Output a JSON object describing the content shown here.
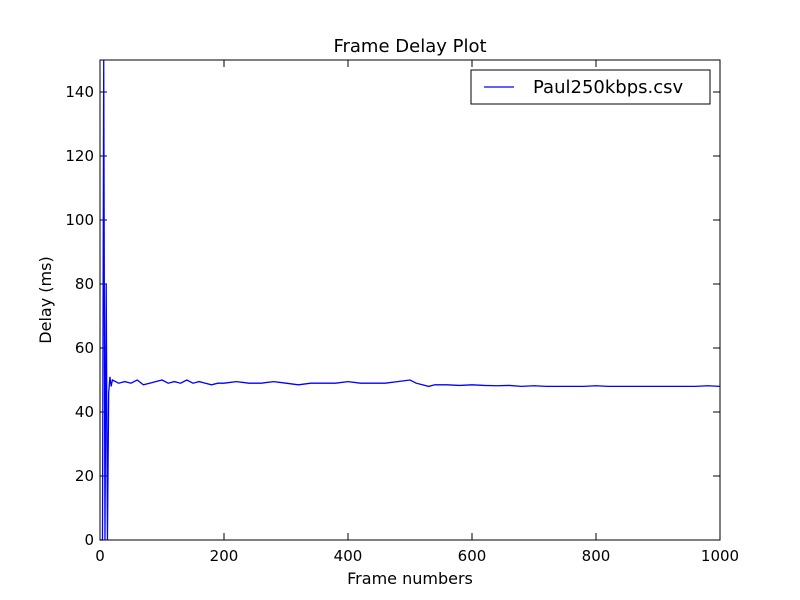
{
  "chart_data": {
    "type": "line",
    "title": "Frame Delay Plot",
    "xlabel": "Frame numbers",
    "ylabel": "Delay (ms)",
    "xlim": [
      0,
      1000
    ],
    "ylim": [
      0,
      150
    ],
    "xticks": [
      0,
      200,
      400,
      600,
      800,
      1000
    ],
    "yticks": [
      0,
      20,
      40,
      60,
      80,
      100,
      120,
      140
    ],
    "grid": false,
    "legend_position": "top-right",
    "colors": {
      "line": "#0000ff",
      "axes": "#000000",
      "background": "#ffffff"
    },
    "series": [
      {
        "name": "Paul250kbps.csv",
        "x": [
          0,
          2,
          4,
          6,
          8,
          10,
          12,
          14,
          16,
          18,
          20,
          30,
          40,
          50,
          60,
          70,
          80,
          90,
          100,
          110,
          120,
          130,
          140,
          150,
          160,
          170,
          180,
          190,
          200,
          220,
          240,
          260,
          280,
          300,
          320,
          340,
          360,
          380,
          400,
          420,
          440,
          460,
          480,
          500,
          510,
          520,
          530,
          540,
          560,
          580,
          600,
          620,
          640,
          660,
          680,
          700,
          720,
          740,
          760,
          780,
          800,
          820,
          840,
          860,
          880,
          900,
          920,
          940,
          960,
          980,
          1000
        ],
        "y": [
          0,
          0,
          0,
          150,
          0,
          80,
          0,
          46,
          51,
          48,
          50,
          49,
          49.5,
          49,
          50,
          48.5,
          49,
          49.5,
          50,
          49,
          49.5,
          49,
          50,
          49,
          49.5,
          49,
          48.5,
          49,
          49,
          49.5,
          49,
          49,
          49.5,
          49,
          48.5,
          49,
          49,
          49,
          49.5,
          49,
          49,
          49,
          49.5,
          50,
          49,
          48.5,
          48,
          48.5,
          48.5,
          48.3,
          48.5,
          48.3,
          48.2,
          48.3,
          48,
          48.2,
          48,
          48,
          48,
          48,
          48.2,
          48,
          48,
          48,
          48,
          48,
          48,
          48,
          48,
          48.2,
          48
        ]
      }
    ]
  }
}
